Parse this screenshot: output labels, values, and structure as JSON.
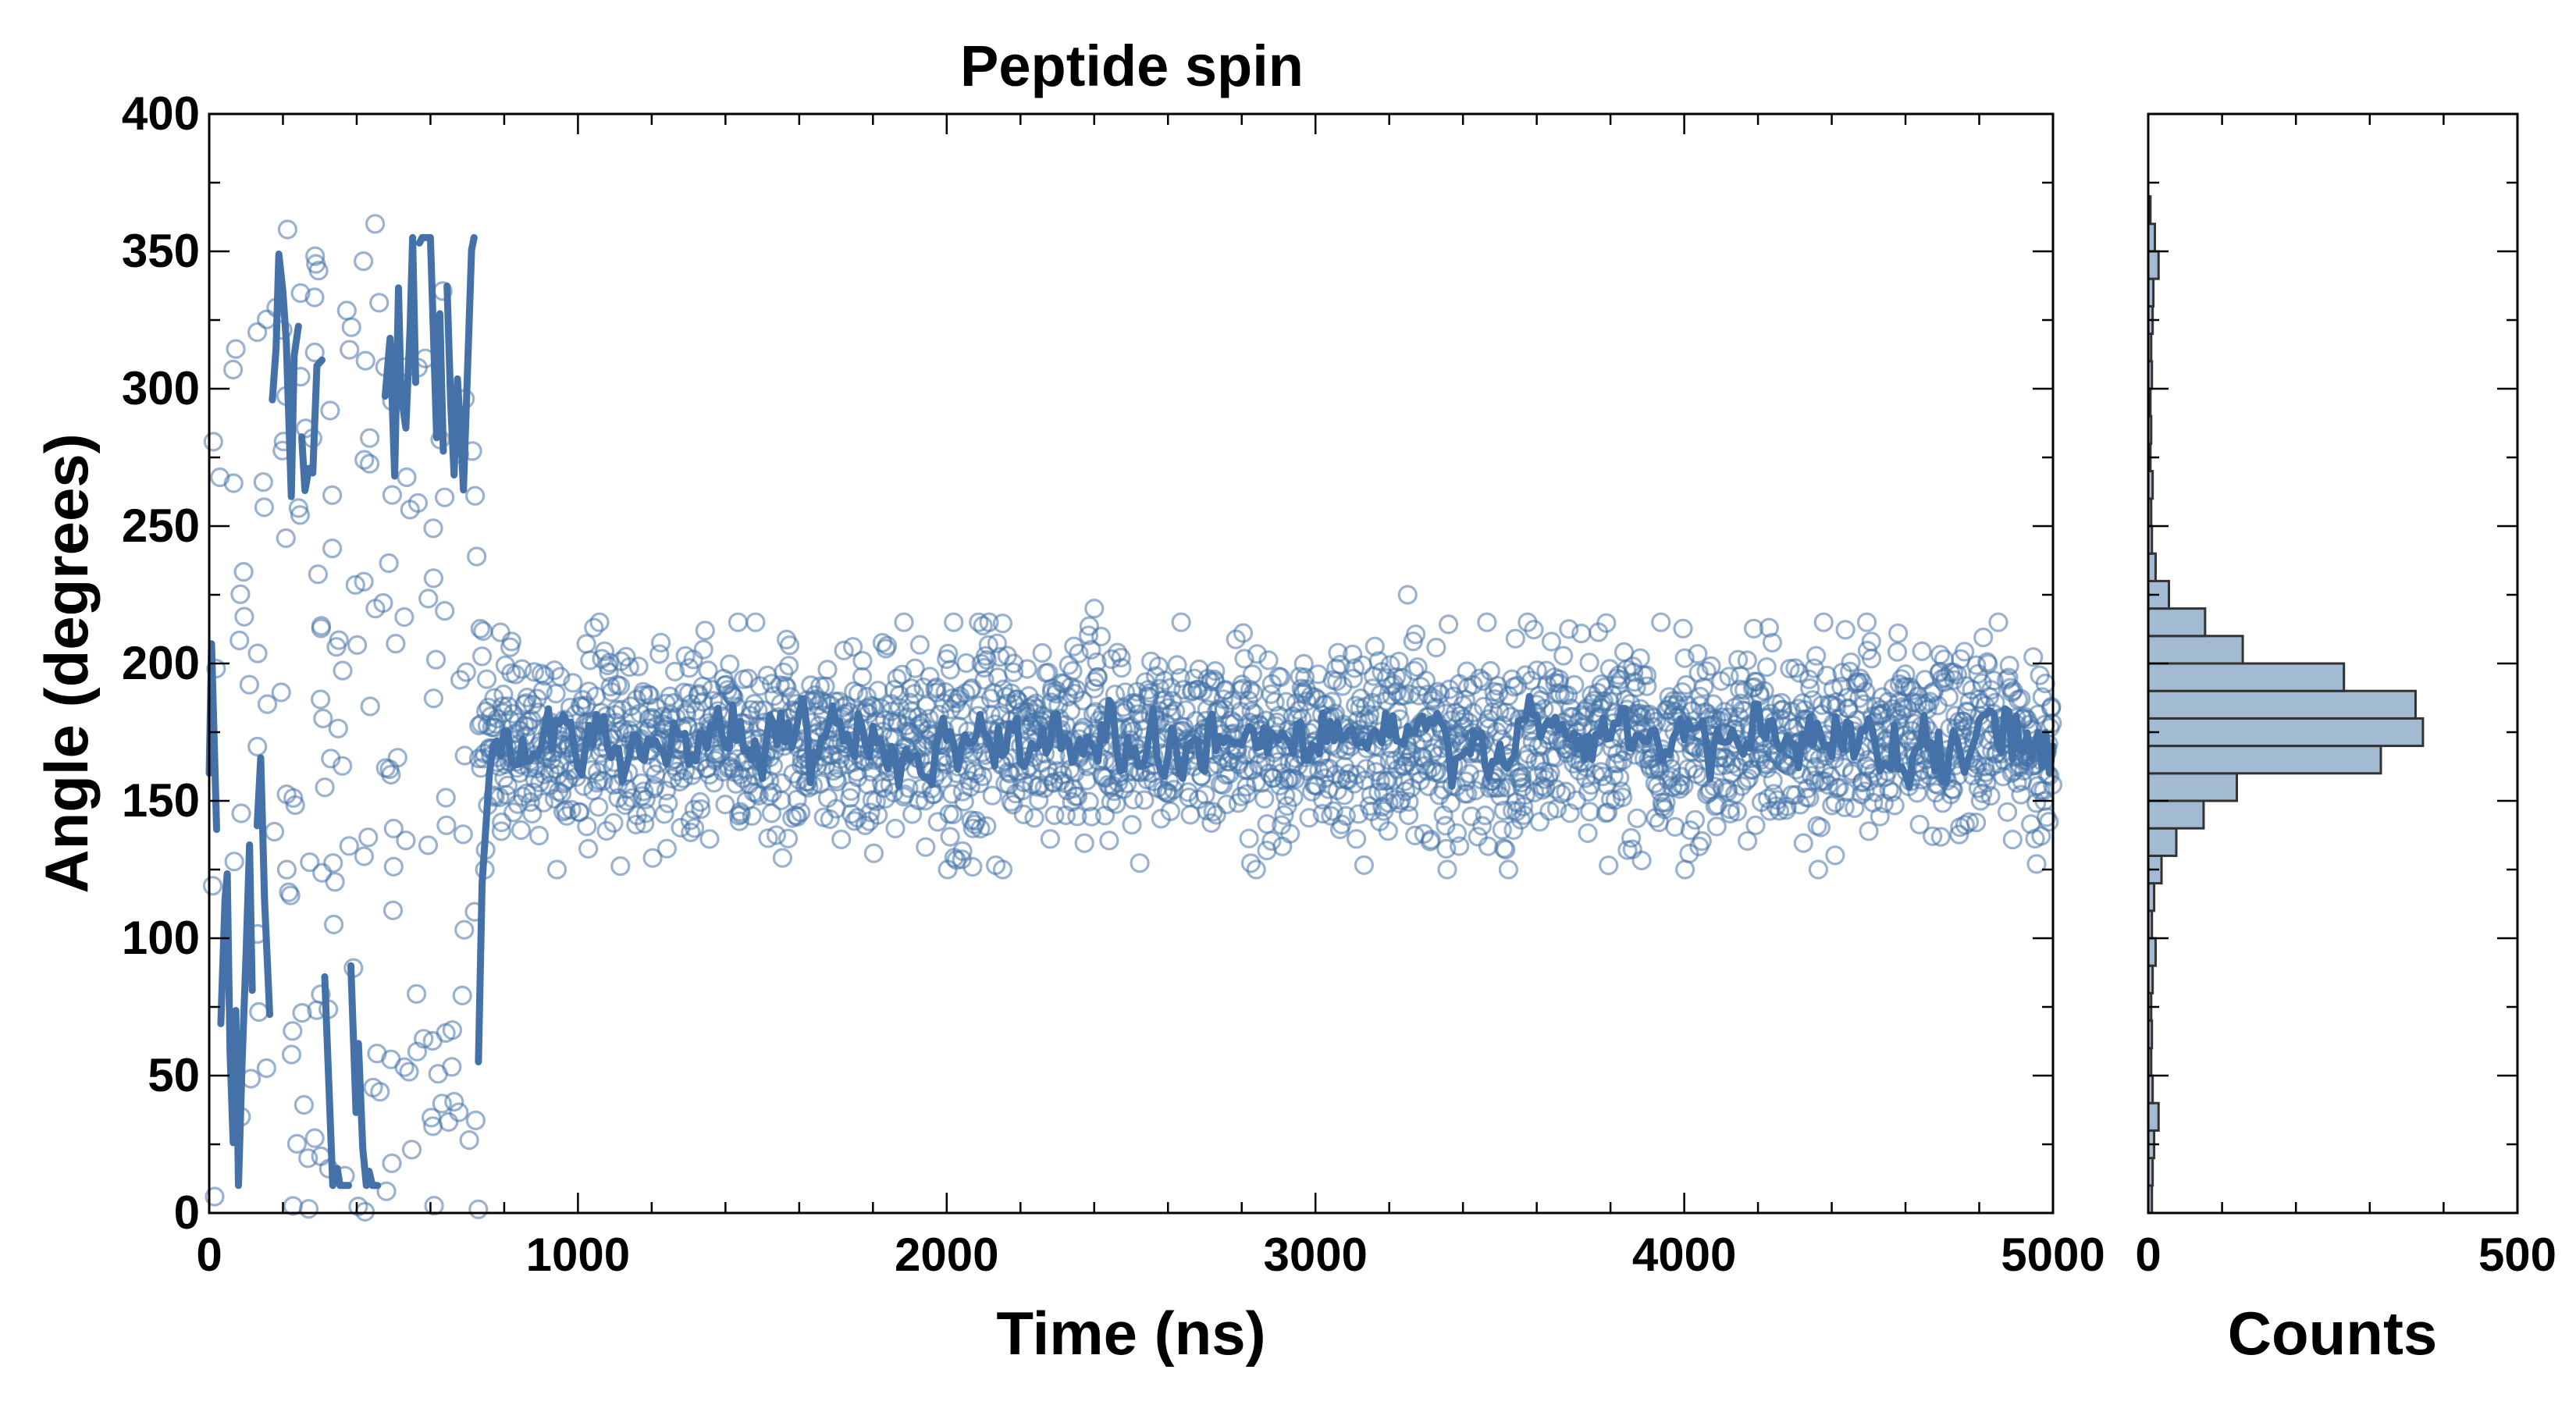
{
  "colors": {
    "series": "#4472a8",
    "hist_fill": "#a3bad3",
    "hist_edge": "#333333",
    "axis": "#000000"
  },
  "chart_data": [
    {
      "type": "scatter",
      "title": "Peptide spin",
      "xlabel": "Time (ns)",
      "ylabel": "Angle (degrees)",
      "xlim": [
        0,
        5000
      ],
      "ylim": [
        0,
        400
      ],
      "x_ticks": [
        0,
        1000,
        2000,
        3000,
        4000,
        5000
      ],
      "y_ticks": [
        0,
        50,
        100,
        150,
        200,
        250,
        300,
        350,
        400
      ],
      "grid": false,
      "legend": "none",
      "series": [
        {
          "kind": "scatter",
          "marker": "open-circle",
          "description": "raw angle samples",
          "segments": [
            {
              "x_range": [
                0,
                730
              ],
              "approx_count": 180,
              "spread": "uniform over 0-360"
            },
            {
              "x_range": [
                730,
                5000
              ],
              "approx_count": 2400,
              "center": 172,
              "std": 17,
              "rare_range": [
                125,
                225
              ]
            }
          ],
          "notable_points": [
            {
              "x": 2400,
              "y": 220
            },
            {
              "x": 3250,
              "y": 225
            },
            {
              "x": 4230,
              "y": 213
            },
            {
              "x": 4580,
              "y": 211
            },
            {
              "x": 2070,
              "y": 126
            },
            {
              "x": 820,
              "y": 208
            },
            {
              "x": 450,
              "y": 360
            }
          ]
        },
        {
          "kind": "line",
          "description": "running average",
          "segments": [
            {
              "x_range": [
                0,
                730
              ],
              "range": [
                10,
                355
              ],
              "behavior": "rapid large jumps"
            },
            {
              "x_range": [
                730,
                5000
              ],
              "center": 172,
              "range": [
                155,
                188
              ]
            }
          ]
        }
      ]
    },
    {
      "type": "bar",
      "orientation": "horizontal",
      "xlabel": "Counts",
      "xlim": [
        0,
        500
      ],
      "x_ticks": [
        0,
        500
      ],
      "ylim": [
        0,
        400
      ],
      "bin_width": 10,
      "bins": [
        {
          "y0": 0,
          "y1": 10,
          "count": 5
        },
        {
          "y0": 10,
          "y1": 20,
          "count": 6
        },
        {
          "y0": 20,
          "y1": 30,
          "count": 8
        },
        {
          "y0": 30,
          "y1": 40,
          "count": 14
        },
        {
          "y0": 40,
          "y1": 50,
          "count": 6
        },
        {
          "y0": 50,
          "y1": 60,
          "count": 4
        },
        {
          "y0": 60,
          "y1": 70,
          "count": 5
        },
        {
          "y0": 70,
          "y1": 80,
          "count": 4
        },
        {
          "y0": 80,
          "y1": 90,
          "count": 6
        },
        {
          "y0": 90,
          "y1": 100,
          "count": 10
        },
        {
          "y0": 100,
          "y1": 110,
          "count": 5
        },
        {
          "y0": 110,
          "y1": 120,
          "count": 8
        },
        {
          "y0": 120,
          "y1": 130,
          "count": 18
        },
        {
          "y0": 130,
          "y1": 140,
          "count": 38
        },
        {
          "y0": 140,
          "y1": 150,
          "count": 75
        },
        {
          "y0": 150,
          "y1": 160,
          "count": 120
        },
        {
          "y0": 160,
          "y1": 170,
          "count": 315
        },
        {
          "y0": 170,
          "y1": 180,
          "count": 372
        },
        {
          "y0": 180,
          "y1": 190,
          "count": 362
        },
        {
          "y0": 190,
          "y1": 200,
          "count": 265
        },
        {
          "y0": 200,
          "y1": 210,
          "count": 128
        },
        {
          "y0": 210,
          "y1": 220,
          "count": 77
        },
        {
          "y0": 220,
          "y1": 230,
          "count": 28
        },
        {
          "y0": 230,
          "y1": 240,
          "count": 10
        },
        {
          "y0": 240,
          "y1": 250,
          "count": 5
        },
        {
          "y0": 250,
          "y1": 260,
          "count": 4
        },
        {
          "y0": 260,
          "y1": 270,
          "count": 6
        },
        {
          "y0": 270,
          "y1": 280,
          "count": 3
        },
        {
          "y0": 280,
          "y1": 290,
          "count": 4
        },
        {
          "y0": 290,
          "y1": 300,
          "count": 3
        },
        {
          "y0": 300,
          "y1": 310,
          "count": 5
        },
        {
          "y0": 310,
          "y1": 320,
          "count": 4
        },
        {
          "y0": 320,
          "y1": 330,
          "count": 6
        },
        {
          "y0": 330,
          "y1": 340,
          "count": 7
        },
        {
          "y0": 340,
          "y1": 350,
          "count": 14
        },
        {
          "y0": 350,
          "y1": 360,
          "count": 9
        },
        {
          "y0": 360,
          "y1": 370,
          "count": 3
        }
      ]
    }
  ]
}
